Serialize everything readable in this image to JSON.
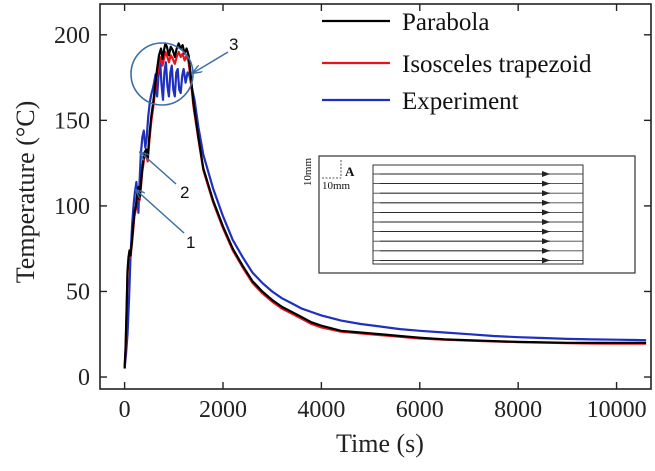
{
  "chart_data": {
    "type": "line",
    "title": "",
    "xlabel": "Time (s)",
    "ylabel": "Temperature (°C)",
    "xlim": [
      -500,
      10700
    ],
    "ylim": [
      -7,
      218
    ],
    "xticks": [
      0,
      2000,
      4000,
      6000,
      8000,
      10000
    ],
    "yticks": [
      0,
      50,
      100,
      150,
      200
    ],
    "xtick_labels": [
      "0",
      "2000",
      "4000",
      "6000",
      "8000",
      "10000"
    ],
    "ytick_labels": [
      "0",
      "50",
      "100",
      "150",
      "200"
    ],
    "legend_position": "top-right",
    "series": [
      {
        "name": "Parabola",
        "color": "#000000",
        "points": [
          [
            0,
            5
          ],
          [
            20,
            18
          ],
          [
            40,
            40
          ],
          [
            60,
            62
          ],
          [
            80,
            70
          ],
          [
            100,
            74
          ],
          [
            120,
            71
          ],
          [
            150,
            80
          ],
          [
            180,
            90
          ],
          [
            200,
            96
          ],
          [
            230,
            100
          ],
          [
            260,
            108
          ],
          [
            280,
            111
          ],
          [
            300,
            104
          ],
          [
            330,
            112
          ],
          [
            360,
            122
          ],
          [
            400,
            131
          ],
          [
            440,
            133
          ],
          [
            470,
            128
          ],
          [
            500,
            140
          ],
          [
            540,
            152
          ],
          [
            580,
            160
          ],
          [
            620,
            170
          ],
          [
            660,
            180
          ],
          [
            700,
            188
          ],
          [
            740,
            192
          ],
          [
            770,
            186
          ],
          [
            800,
            191
          ],
          [
            830,
            195
          ],
          [
            860,
            193
          ],
          [
            900,
            188
          ],
          [
            940,
            193
          ],
          [
            980,
            191
          ],
          [
            1020,
            187
          ],
          [
            1060,
            192
          ],
          [
            1100,
            195
          ],
          [
            1140,
            192
          ],
          [
            1180,
            194
          ],
          [
            1220,
            189
          ],
          [
            1260,
            192
          ],
          [
            1300,
            188
          ],
          [
            1350,
            175
          ],
          [
            1400,
            160
          ],
          [
            1500,
            140
          ],
          [
            1600,
            122
          ],
          [
            1800,
            103
          ],
          [
            2000,
            88
          ],
          [
            2200,
            75
          ],
          [
            2400,
            65
          ],
          [
            2600,
            56
          ],
          [
            2800,
            50
          ],
          [
            3000,
            45
          ],
          [
            3200,
            41
          ],
          [
            3400,
            38
          ],
          [
            3600,
            35
          ],
          [
            3800,
            32
          ],
          [
            4000,
            30
          ],
          [
            4400,
            27
          ],
          [
            4800,
            26
          ],
          [
            5200,
            25
          ],
          [
            5600,
            24
          ],
          [
            6000,
            23
          ],
          [
            6500,
            22
          ],
          [
            7000,
            21.5
          ],
          [
            7500,
            21
          ],
          [
            8000,
            20.5
          ],
          [
            8500,
            20.3
          ],
          [
            9000,
            20
          ],
          [
            9500,
            20
          ],
          [
            10000,
            20
          ],
          [
            10600,
            20
          ]
        ]
      },
      {
        "name": "Isosceles trapezoid",
        "color": "#e8141b",
        "points": [
          [
            0,
            5
          ],
          [
            20,
            16
          ],
          [
            40,
            38
          ],
          [
            60,
            60
          ],
          [
            80,
            68
          ],
          [
            100,
            72
          ],
          [
            120,
            70
          ],
          [
            150,
            78
          ],
          [
            180,
            88
          ],
          [
            200,
            94
          ],
          [
            230,
            98
          ],
          [
            260,
            106
          ],
          [
            280,
            108
          ],
          [
            300,
            103
          ],
          [
            330,
            110
          ],
          [
            360,
            120
          ],
          [
            400,
            128
          ],
          [
            440,
            130
          ],
          [
            470,
            126
          ],
          [
            500,
            137
          ],
          [
            540,
            149
          ],
          [
            580,
            157
          ],
          [
            620,
            167
          ],
          [
            660,
            176
          ],
          [
            700,
            183
          ],
          [
            740,
            187
          ],
          [
            770,
            182
          ],
          [
            800,
            186
          ],
          [
            830,
            190
          ],
          [
            860,
            188
          ],
          [
            900,
            184
          ],
          [
            940,
            188
          ],
          [
            980,
            186
          ],
          [
            1020,
            183
          ],
          [
            1060,
            187
          ],
          [
            1100,
            190
          ],
          [
            1140,
            187
          ],
          [
            1180,
            189
          ],
          [
            1220,
            185
          ],
          [
            1260,
            188
          ],
          [
            1300,
            184
          ],
          [
            1350,
            172
          ],
          [
            1400,
            158
          ],
          [
            1500,
            139
          ],
          [
            1600,
            121
          ],
          [
            1800,
            102
          ],
          [
            2000,
            87
          ],
          [
            2200,
            74
          ],
          [
            2400,
            64
          ],
          [
            2600,
            55
          ],
          [
            2800,
            49
          ],
          [
            3000,
            44
          ],
          [
            3200,
            40
          ],
          [
            3400,
            37
          ],
          [
            3600,
            34
          ],
          [
            3800,
            31
          ],
          [
            4000,
            29
          ],
          [
            4400,
            26.5
          ],
          [
            4800,
            25.5
          ],
          [
            5200,
            24.5
          ],
          [
            5600,
            23.5
          ],
          [
            6000,
            22.5
          ],
          [
            6500,
            21.8
          ],
          [
            7000,
            21.2
          ],
          [
            7500,
            20.8
          ],
          [
            8000,
            20.4
          ],
          [
            8500,
            20.1
          ],
          [
            9000,
            19.8
          ],
          [
            9500,
            19.6
          ],
          [
            10000,
            19.5
          ],
          [
            10600,
            19.5
          ]
        ]
      },
      {
        "name": "Experiment",
        "color": "#1f2fbf",
        "points": [
          [
            0,
            5
          ],
          [
            30,
            14
          ],
          [
            60,
            25
          ],
          [
            90,
            45
          ],
          [
            120,
            70
          ],
          [
            150,
            88
          ],
          [
            180,
            100
          ],
          [
            210,
            108
          ],
          [
            240,
            114
          ],
          [
            260,
            106
          ],
          [
            280,
            96
          ],
          [
            300,
            112
          ],
          [
            330,
            130
          ],
          [
            360,
            140
          ],
          [
            390,
            144
          ],
          [
            420,
            134
          ],
          [
            450,
            140
          ],
          [
            480,
            152
          ],
          [
            510,
            160
          ],
          [
            540,
            165
          ],
          [
            570,
            168
          ],
          [
            600,
            172
          ],
          [
            630,
            177
          ],
          [
            660,
            164
          ],
          [
            690,
            176
          ],
          [
            720,
            186
          ],
          [
            750,
            171
          ],
          [
            780,
            162
          ],
          [
            810,
            178
          ],
          [
            840,
            184
          ],
          [
            870,
            170
          ],
          [
            900,
            164
          ],
          [
            930,
            178
          ],
          [
            960,
            182
          ],
          [
            990,
            168
          ],
          [
            1020,
            164
          ],
          [
            1050,
            178
          ],
          [
            1080,
            180
          ],
          [
            1110,
            168
          ],
          [
            1140,
            166
          ],
          [
            1170,
            176
          ],
          [
            1200,
            180
          ],
          [
            1240,
            172
          ],
          [
            1280,
            178
          ],
          [
            1320,
            176
          ],
          [
            1360,
            170
          ],
          [
            1420,
            162
          ],
          [
            1500,
            146
          ],
          [
            1600,
            130
          ],
          [
            1800,
            110
          ],
          [
            2000,
            94
          ],
          [
            2200,
            80
          ],
          [
            2400,
            70
          ],
          [
            2600,
            61
          ],
          [
            2800,
            55
          ],
          [
            3000,
            50
          ],
          [
            3200,
            46
          ],
          [
            3400,
            43
          ],
          [
            3600,
            40
          ],
          [
            3800,
            38
          ],
          [
            4000,
            36
          ],
          [
            4400,
            33
          ],
          [
            4800,
            31
          ],
          [
            5200,
            29.5
          ],
          [
            5600,
            28
          ],
          [
            6000,
            27
          ],
          [
            6500,
            26
          ],
          [
            7000,
            25
          ],
          [
            7500,
            24
          ],
          [
            8000,
            23.3
          ],
          [
            8500,
            22.8
          ],
          [
            9000,
            22.3
          ],
          [
            9500,
            22
          ],
          [
            10000,
            21.8
          ],
          [
            10600,
            21.5
          ]
        ]
      }
    ],
    "annotations": [
      {
        "label": "1",
        "target": [
          240,
          110
        ]
      },
      {
        "label": "2",
        "target": [
          470,
          130
        ]
      },
      {
        "label": "3",
        "target": [
          980,
          178
        ]
      }
    ],
    "inset": {
      "label_vertical": "10mm",
      "label_horizontal": "10mm",
      "point_label": "A",
      "scan_lines": 10
    }
  }
}
